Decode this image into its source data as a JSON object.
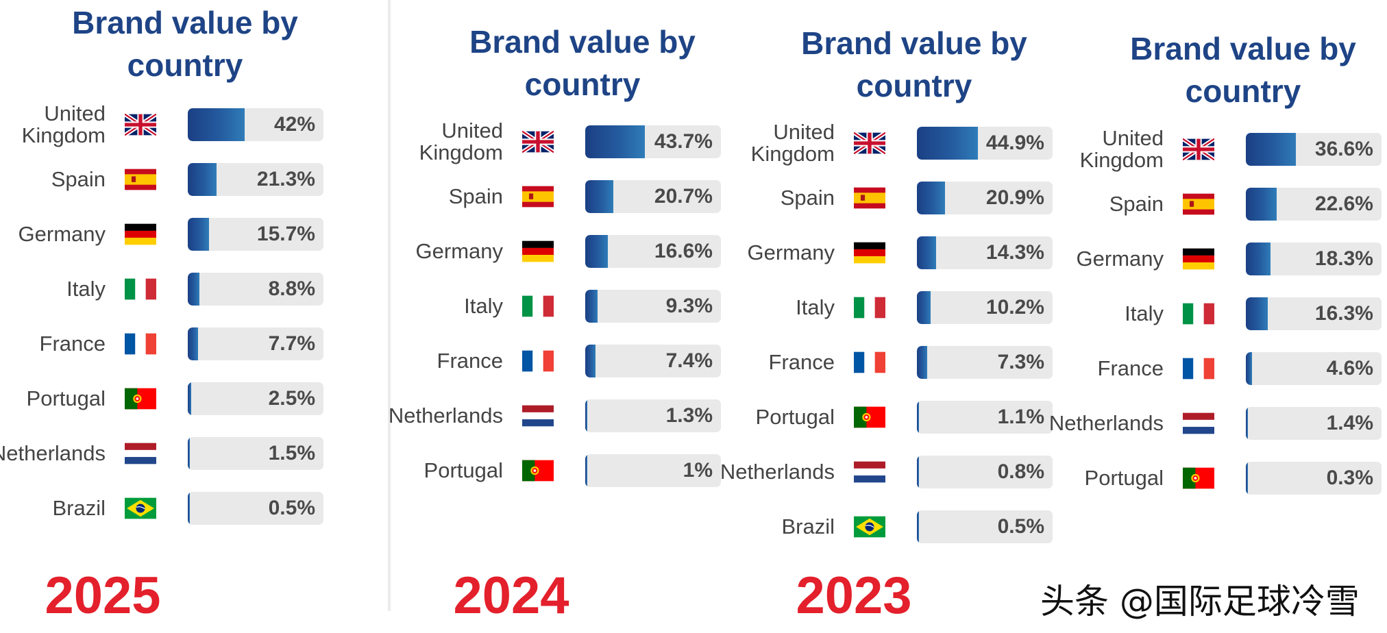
{
  "watermark": "头条 @国际足球冷雪",
  "colors": {
    "title": "#1e4486",
    "year": "#e3202b",
    "bar": "#1e4486",
    "track": "#e9e9e9"
  },
  "chart_data": [
    {
      "type": "bar",
      "title": "Brand value by country",
      "year_label": "2025",
      "categories": [
        "United Kingdom",
        "Spain",
        "Germany",
        "Italy",
        "France",
        "Portugal",
        "Netherlands",
        "Brazil"
      ],
      "values": [
        42,
        21.3,
        15.7,
        8.8,
        7.7,
        2.5,
        1.5,
        0.5
      ],
      "labels": [
        "42%",
        "21.3%",
        "15.7%",
        "8.8%",
        "7.7%",
        "2.5%",
        "1.5%",
        "0.5%"
      ],
      "flags": [
        "uk-flag",
        "spain-flag",
        "germany-flag",
        "italy-flag",
        "france-flag",
        "portugal-flag",
        "netherlands-flag",
        "brazil-flag"
      ],
      "unit": "%",
      "xlim": [
        0,
        100
      ]
    },
    {
      "type": "bar",
      "title": "Brand value by country",
      "year_label": "2024",
      "categories": [
        "United Kingdom",
        "Spain",
        "Germany",
        "Italy",
        "France",
        "Netherlands",
        "Portugal"
      ],
      "values": [
        43.7,
        20.7,
        16.6,
        9.3,
        7.4,
        1.3,
        1
      ],
      "labels": [
        "43.7%",
        "20.7%",
        "16.6%",
        "9.3%",
        "7.4%",
        "1.3%",
        "1%"
      ],
      "flags": [
        "uk-flag",
        "spain-flag",
        "germany-flag",
        "italy-flag",
        "france-flag",
        "netherlands-flag",
        "portugal-flag"
      ],
      "unit": "%",
      "xlim": [
        0,
        100
      ]
    },
    {
      "type": "bar",
      "title": "Brand value by country",
      "year_label": "2023",
      "categories": [
        "United Kingdom",
        "Spain",
        "Germany",
        "Italy",
        "France",
        "Portugal",
        "Netherlands",
        "Brazil"
      ],
      "values": [
        44.9,
        20.9,
        14.3,
        10.2,
        7.3,
        1.1,
        0.8,
        0.5
      ],
      "labels": [
        "44.9%",
        "20.9%",
        "14.3%",
        "10.2%",
        "7.3%",
        "1.1%",
        "0.8%",
        "0.5%"
      ],
      "flags": [
        "uk-flag",
        "spain-flag",
        "germany-flag",
        "italy-flag",
        "france-flag",
        "portugal-flag",
        "netherlands-flag",
        "brazil-flag"
      ],
      "unit": "%",
      "xlim": [
        0,
        100
      ]
    },
    {
      "type": "bar",
      "title": "Brand value by country",
      "year_label": "",
      "categories": [
        "United Kingdom",
        "Spain",
        "Germany",
        "Italy",
        "France",
        "Netherlands",
        "Portugal"
      ],
      "values": [
        36.6,
        22.6,
        18.3,
        16.3,
        4.6,
        1.4,
        0.3
      ],
      "labels": [
        "36.6%",
        "22.6%",
        "18.3%",
        "16.3%",
        "4.6%",
        "1.4%",
        "0.3%"
      ],
      "flags": [
        "uk-flag",
        "spain-flag",
        "germany-flag",
        "italy-flag",
        "france-flag",
        "netherlands-flag",
        "portugal-flag"
      ],
      "unit": "%",
      "xlim": [
        0,
        100
      ]
    }
  ]
}
